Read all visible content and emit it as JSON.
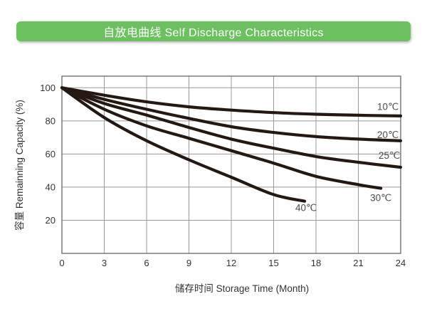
{
  "header": {
    "title": "自放电曲线 Self Discharge Characteristics",
    "bg_color": "#6cc05f",
    "text_color": "#ffffff"
  },
  "chart_data": {
    "type": "line",
    "title": "自放电曲线 Self Discharge Characteristics",
    "xlabel": "储存时间 Storage Time (Month)",
    "ylabel": "容量 Remainning Capacity (%)",
    "xlim": [
      0,
      24
    ],
    "ylim": [
      0,
      107
    ],
    "x_ticks": [
      0,
      3,
      6,
      9,
      12,
      15,
      18,
      21,
      24
    ],
    "y_ticks": [
      20,
      40,
      60,
      80,
      100
    ],
    "grid": true,
    "legend_position": "labels-at-line-ends",
    "line_color": "#241812",
    "grid_color": "#999999",
    "frame_color": "#666666",
    "tick_label_color": "#333333",
    "series_label_color": "#4d4a48",
    "series": [
      {
        "name": "10℃",
        "points": [
          [
            0,
            100
          ],
          [
            3,
            95.5
          ],
          [
            6,
            91.5
          ],
          [
            9,
            88.5
          ],
          [
            12,
            86.5
          ],
          [
            15,
            85
          ],
          [
            18,
            84
          ],
          [
            21,
            83.4
          ],
          [
            24,
            83
          ]
        ],
        "label_pos": {
          "month": 23.1,
          "value": 88.5
        }
      },
      {
        "name": "20℃",
        "points": [
          [
            0,
            100
          ],
          [
            3,
            93
          ],
          [
            6,
            87
          ],
          [
            9,
            81.5
          ],
          [
            12,
            76.5
          ],
          [
            15,
            73
          ],
          [
            18,
            70.5
          ],
          [
            21,
            69
          ],
          [
            24,
            68
          ]
        ],
        "label_pos": {
          "month": 23.1,
          "value": 71.5
        }
      },
      {
        "name": "25℃",
        "points": [
          [
            0,
            100
          ],
          [
            3,
            90.5
          ],
          [
            6,
            83.5
          ],
          [
            9,
            76
          ],
          [
            12,
            69
          ],
          [
            15,
            63.5
          ],
          [
            18,
            58.5
          ],
          [
            21,
            55
          ],
          [
            24,
            52
          ]
        ],
        "label_pos": {
          "month": 23.2,
          "value": 59
        }
      },
      {
        "name": "30℃",
        "points": [
          [
            0,
            100
          ],
          [
            3,
            87
          ],
          [
            6,
            77
          ],
          [
            9,
            69.5
          ],
          [
            12,
            62
          ],
          [
            15,
            54.5
          ],
          [
            18,
            46.5
          ],
          [
            21,
            41.5
          ],
          [
            22.6,
            39.3
          ]
        ],
        "label_pos": {
          "month": 22.6,
          "value": 33.5
        }
      },
      {
        "name": "40℃",
        "points": [
          [
            0,
            100
          ],
          [
            3,
            82
          ],
          [
            6,
            68
          ],
          [
            9,
            56.5
          ],
          [
            12,
            46
          ],
          [
            15,
            35.5
          ],
          [
            17.2,
            31.5
          ]
        ],
        "label_pos": {
          "month": 17.3,
          "value": 27.5
        }
      }
    ]
  }
}
